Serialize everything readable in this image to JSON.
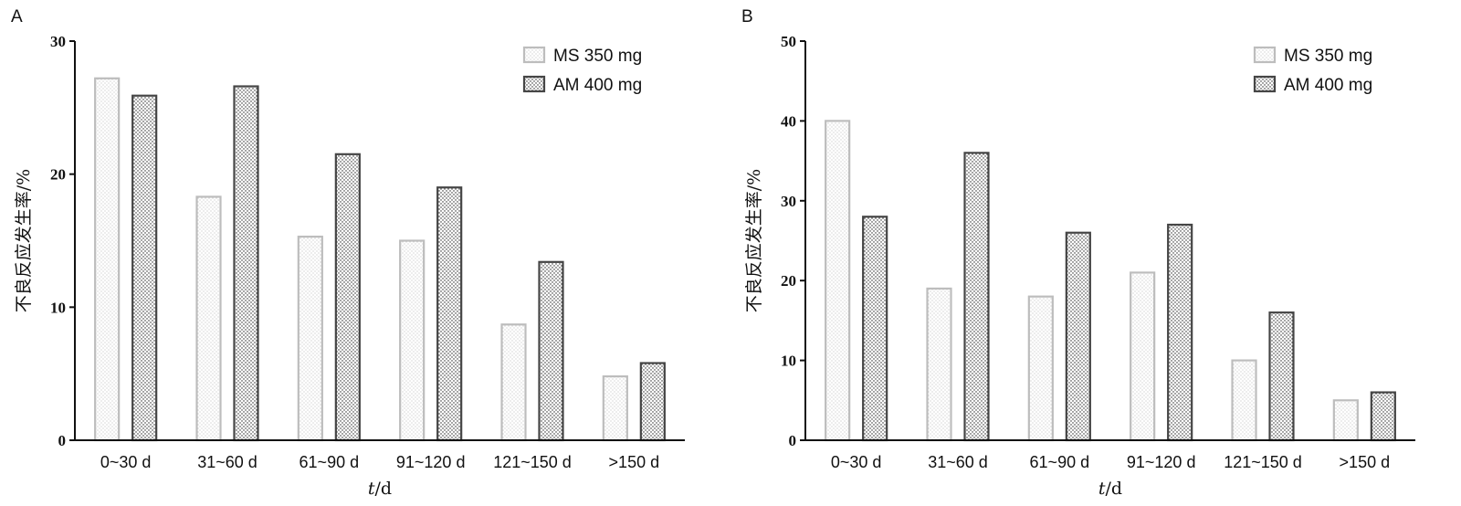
{
  "colors": {
    "ms": "#bdbdbd",
    "am": "#454545",
    "axis": "#111111"
  },
  "chart_data": [
    {
      "panel": "A",
      "type": "bar",
      "categories": [
        "0~30 d",
        "31~60 d",
        "61~90 d",
        "91~120 d",
        "121~150 d",
        ">150 d"
      ],
      "series": [
        {
          "name": "MS 350 mg",
          "values": [
            27.2,
            18.3,
            15.3,
            15.0,
            8.7,
            4.8
          ]
        },
        {
          "name": "AM 400 mg",
          "values": [
            25.9,
            26.6,
            21.5,
            19.0,
            13.4,
            5.8
          ]
        }
      ],
      "ylim": [
        0,
        30
      ],
      "yticks": [
        0,
        10,
        20,
        30
      ],
      "xlabel_italic": "t",
      "xlabel_rest": "/d",
      "ylabel": "不良反应发生率/%",
      "grid": false,
      "legend": "top-right"
    },
    {
      "panel": "B",
      "type": "bar",
      "categories": [
        "0~30 d",
        "31~60 d",
        "61~90 d",
        "91~120 d",
        "121~150 d",
        ">150 d"
      ],
      "series": [
        {
          "name": "MS 350 mg",
          "values": [
            40,
            19,
            18,
            21,
            10,
            5
          ]
        },
        {
          "name": "AM 400 mg",
          "values": [
            28,
            36,
            26,
            27,
            16,
            6
          ]
        }
      ],
      "ylim": [
        0,
        50
      ],
      "yticks": [
        0,
        10,
        20,
        30,
        40,
        50
      ],
      "xlabel_italic": "t",
      "xlabel_rest": "/d",
      "ylabel": "不良反应发生率/%",
      "grid": false,
      "legend": "top-right"
    }
  ]
}
